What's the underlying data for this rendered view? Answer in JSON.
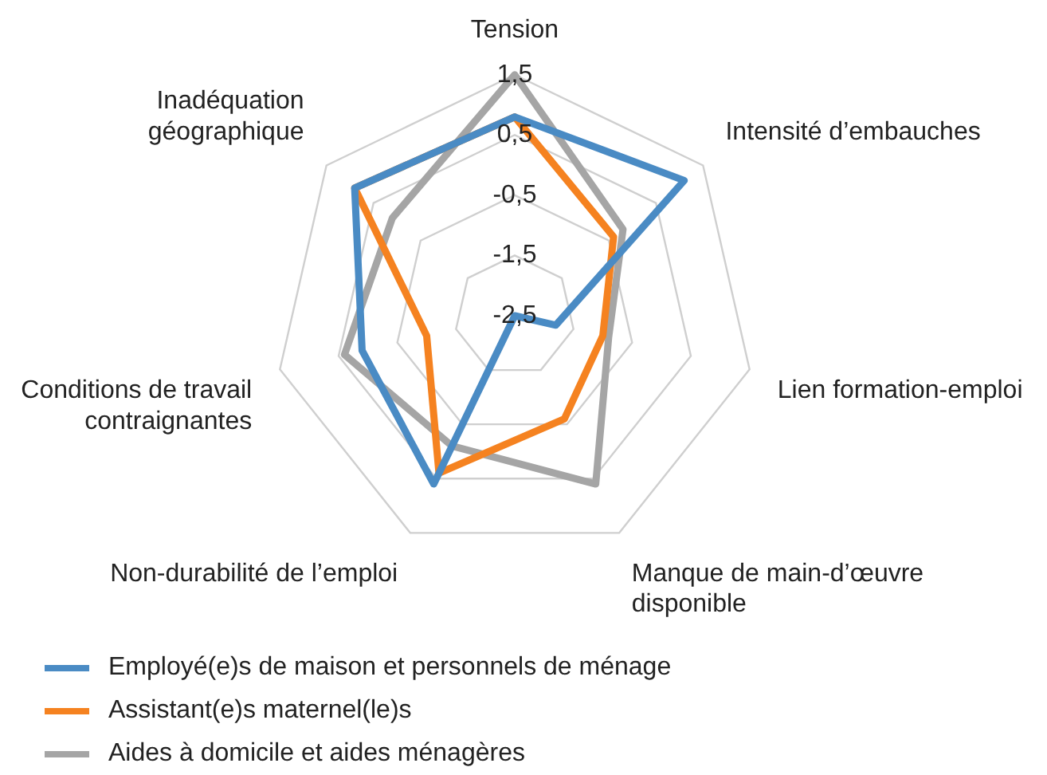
{
  "chart_data": {
    "type": "radar",
    "categories": [
      "Tension",
      "Intensité d’embauches",
      "Lien formation-emploi",
      "Manque de main-d’œuvre\ndisponible",
      "Non-durabilité de l’emploi",
      "Conditions de travail\ncontraignantes",
      "Inadéquation\ngéographique"
    ],
    "series": [
      {
        "name": "Employé(e)s de maison et personnels de ménage",
        "color": "#4a8bc4",
        "values": [
          0.8,
          1.1,
          -1.8,
          -2.5,
          0.6,
          0.1,
          0.9
        ]
      },
      {
        "name": "Assistant(e)s maternel(le)s",
        "color": "#f58220",
        "values": [
          0.8,
          -0.4,
          -1.0,
          -0.6,
          0.4,
          -1.0,
          0.9
        ]
      },
      {
        "name": "Aides à domicile et aides ménagères",
        "color": "#a5a5a5",
        "values": [
          1.5,
          -0.2,
          -0.9,
          0.6,
          -0.1,
          0.4,
          0.1
        ]
      }
    ],
    "ylim": [
      -2.5,
      1.5
    ],
    "yticks": [
      {
        "value": -2.5,
        "label": "-2,5"
      },
      {
        "value": -1.5,
        "label": "-1,5"
      },
      {
        "value": -0.5,
        "label": "-0,5"
      },
      {
        "value": 0.5,
        "label": "0,5"
      },
      {
        "value": 1.5,
        "label": "1,5"
      }
    ],
    "grid": true,
    "legend": "bottom",
    "marker": "none"
  }
}
